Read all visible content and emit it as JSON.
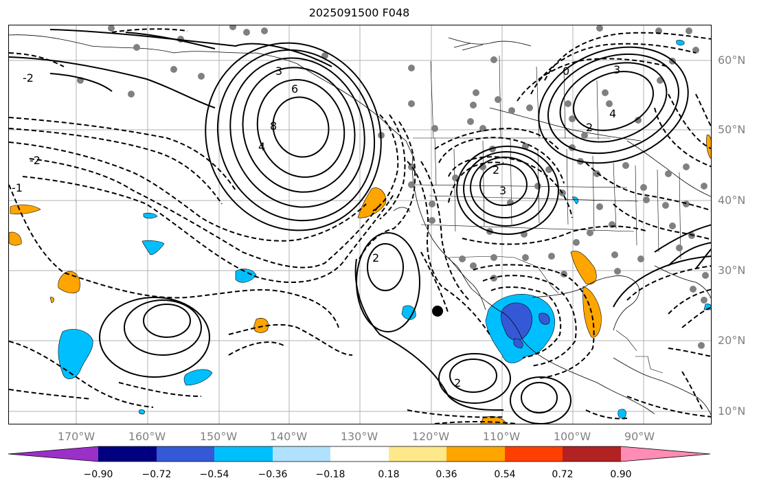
{
  "title": "2025091500 F048",
  "lat_labels": [
    "60°N",
    "50°N",
    "40°N",
    "30°N",
    "20°N",
    "10°N"
  ],
  "lon_labels": [
    "170°W",
    "160°W",
    "150°W",
    "140°W",
    "130°W",
    "120°W",
    "110°W",
    "100°W",
    "90°W"
  ],
  "colorbar": {
    "ticks": [
      "−0.90",
      "−0.72",
      "−0.54",
      "−0.36",
      "−0.18",
      "0.18",
      "0.36",
      "0.54",
      "0.72",
      "0.90"
    ],
    "colors": [
      "#9b30c9",
      "#000080",
      "#3559d6",
      "#00bfff",
      "#b0e2ff",
      "#ffffff",
      "#fde98a",
      "#ffa500",
      "#ff3f00",
      "#b22222",
      "#ff8cb4"
    ]
  },
  "contour_labels": {
    "low_gulf_alaska": [
      "6",
      "8",
      "4",
      "3"
    ],
    "high_canada": [
      "0",
      "2",
      "3",
      "4"
    ],
    "great_basin": [
      "2",
      "3"
    ],
    "offshore_mexico": [
      "2"
    ],
    "southwest_pacific": [
      "-2",
      "-1",
      "-2",
      "2"
    ]
  },
  "colors": {
    "grid": "#b0b0b0",
    "label": "#808080",
    "station": "#808080"
  }
}
